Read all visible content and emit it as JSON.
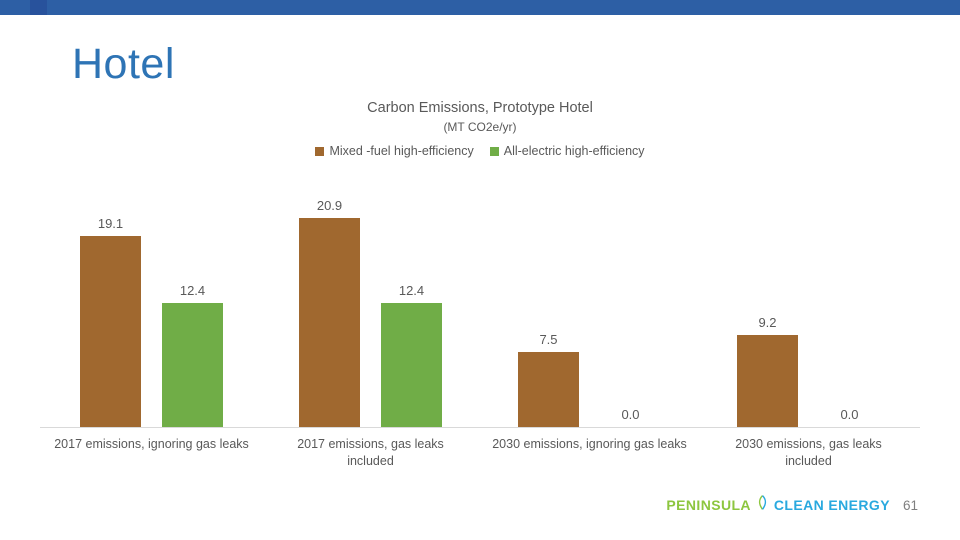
{
  "slide": {
    "title": "Hotel",
    "page_number": "61"
  },
  "theme": {
    "top_bar_color": "#2D5FA5",
    "top_bar_accent_color": "#28529C",
    "title_color": "#2E74B5",
    "text_gray": "#595959",
    "axis_line_color": "#D9D9D9",
    "page_number_color": "#7F7F7F"
  },
  "logo": {
    "word1": "PENINSULA",
    "word2": "CLEAN ENERGY",
    "word1_color": "#8DC63F",
    "word2_color": "#29A9DF",
    "icon": "leaf-icon"
  },
  "chart_data": {
    "type": "bar",
    "title": "Carbon Emissions, Prototype Hotel",
    "subtitle": "(MT CO2e/yr)",
    "categories": [
      "2017 emissions, ignoring gas leaks",
      "2017 emissions, gas leaks included",
      "2030 emissions, ignoring gas leaks",
      "2030 emissions, gas leaks included"
    ],
    "category_lines": [
      [
        "2017 emissions, ignoring gas leaks"
      ],
      [
        "2017 emissions, gas leaks",
        "included"
      ],
      [
        "2030 emissions, ignoring gas leaks"
      ],
      [
        "2030 emissions, gas leaks",
        "included"
      ]
    ],
    "series": [
      {
        "name": "Mixed -fuel high-efficiency",
        "color": "#A0682F",
        "values": [
          19.1,
          20.9,
          7.5,
          9.2
        ]
      },
      {
        "name": "All-electric high-efficiency",
        "color": "#70AD47",
        "values": [
          12.4,
          12.4,
          0.0,
          0.0
        ]
      }
    ],
    "ylim": [
      0,
      22
    ],
    "grid": false,
    "legend_position": "top",
    "value_label_decimals": 1
  }
}
